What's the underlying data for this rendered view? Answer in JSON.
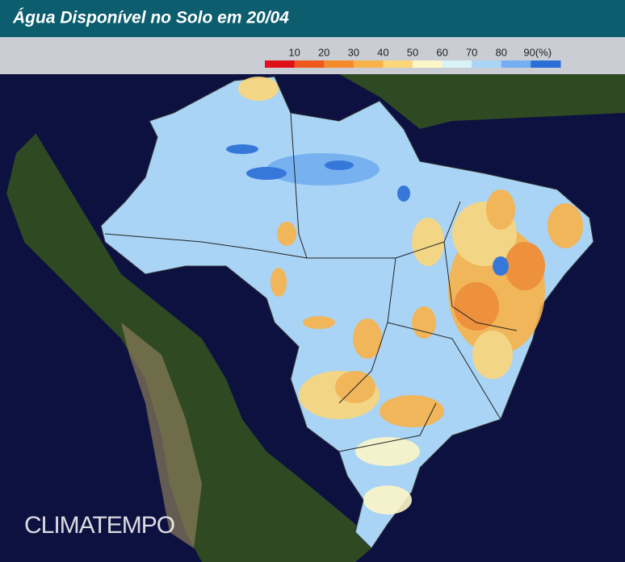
{
  "header": {
    "title": "Água Disponível no Solo em 20/04"
  },
  "legend": {
    "ticks": [
      10,
      20,
      30,
      40,
      50,
      60,
      70,
      80,
      {
        "value": 90,
        "label": "90(%)"
      }
    ],
    "colors": [
      "#e0101a",
      "#f0581c",
      "#f58a2a",
      "#f9b24a",
      "#fbd77a",
      "#fdf6c8",
      "#d8f2f6",
      "#a9d4f5",
      "#72aef0",
      "#2a6fd8"
    ]
  },
  "watermark": "CLIMATEMPO"
}
